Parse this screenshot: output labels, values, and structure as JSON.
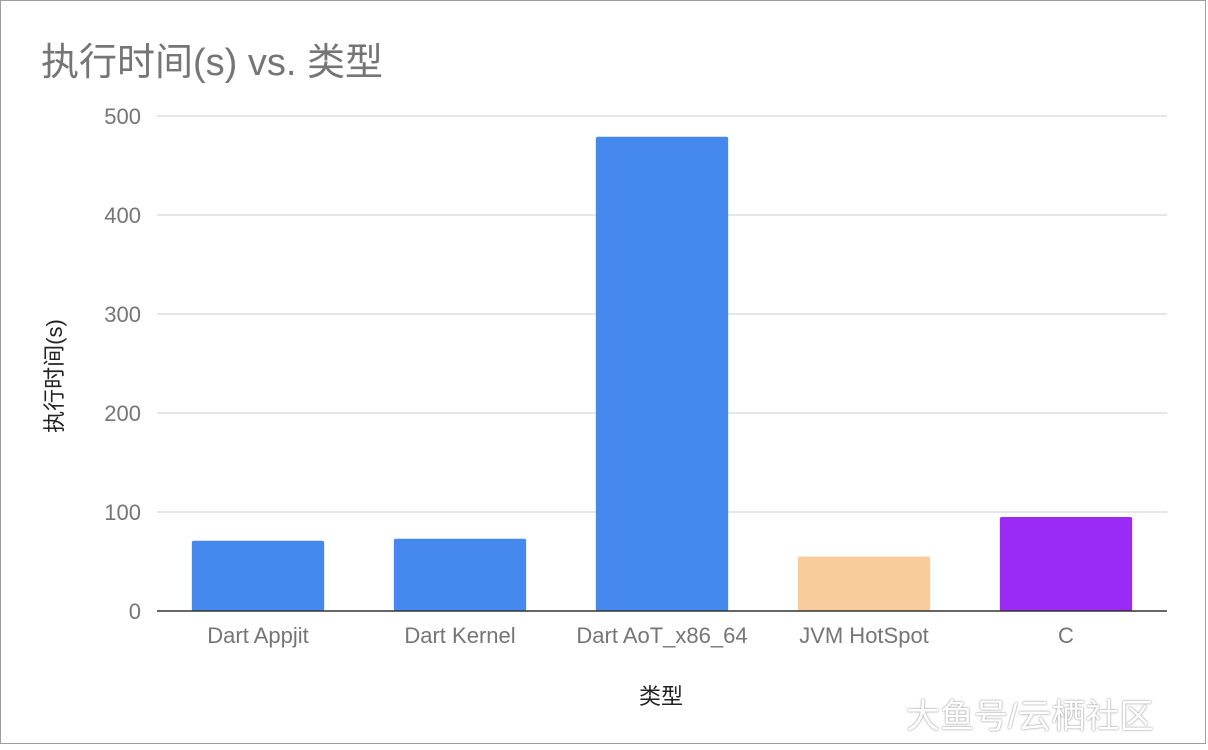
{
  "chart_data": {
    "type": "bar",
    "title": "执行时间(s) vs. 类型",
    "xlabel": "类型",
    "ylabel": "执行时间(s)",
    "categories": [
      "Dart Appjit",
      "Dart Kernel",
      "Dart AoT_x86_64",
      "JVM HotSpot",
      "C"
    ],
    "values": [
      71,
      73,
      479,
      55,
      95
    ],
    "colors": [
      "#4589ee",
      "#4589ee",
      "#4589ee",
      "#f9cc9e",
      "#9a2bf4"
    ],
    "ylim": [
      0,
      500
    ],
    "yticks": [
      0,
      100,
      200,
      300,
      400,
      500
    ],
    "grid": true,
    "legend": "none"
  },
  "watermark": "大鱼号/云栖社区",
  "colors": {
    "grid": "#cccccc",
    "axis": "#333333",
    "tick_text": "#757575"
  }
}
